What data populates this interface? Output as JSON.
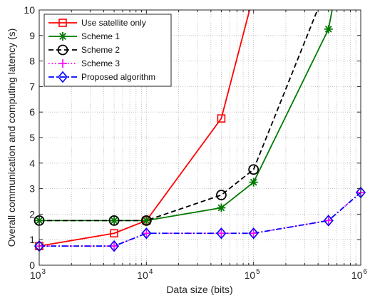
{
  "chart_data": {
    "type": "line",
    "xlabel": "Data size (bits)",
    "ylabel": "Overall communication and computing latency (s)",
    "xscale": "log",
    "xlim": [
      1000,
      1000000
    ],
    "ylim": [
      0,
      10
    ],
    "grid": true,
    "legend_position": "top-left",
    "x_ticks": [
      {
        "value": 1000,
        "base": "10",
        "exp": "3"
      },
      {
        "value": 10000,
        "base": "10",
        "exp": "4"
      },
      {
        "value": 100000,
        "base": "10",
        "exp": "5"
      },
      {
        "value": 1000000,
        "base": "10",
        "exp": "6"
      }
    ],
    "y_ticks": [
      "0",
      "1",
      "2",
      "3",
      "4",
      "5",
      "6",
      "7",
      "8",
      "9",
      "10"
    ],
    "series": [
      {
        "name": "Use satellite only",
        "color": "#ff0000",
        "dash": "solid",
        "marker": "square",
        "x": [
          1000,
          5000,
          10000,
          50000,
          100000
        ],
        "y": [
          0.75,
          1.25,
          1.75,
          5.75,
          10.6
        ],
        "marker_x": [
          1000,
          5000,
          10000,
          50000
        ]
      },
      {
        "name": "Scheme 1",
        "color": "#007a00",
        "dash": "solid",
        "marker": "asterisk",
        "x": [
          1000,
          5000,
          10000,
          50000,
          100000,
          500000,
          600000
        ],
        "y": [
          1.75,
          1.75,
          1.75,
          2.25,
          3.25,
          9.25,
          11.0
        ],
        "marker_x": [
          1000,
          5000,
          10000,
          50000,
          100000,
          500000
        ]
      },
      {
        "name": "Scheme 2",
        "color": "#000000",
        "dash": "dash",
        "marker": "circle",
        "x": [
          1000,
          5000,
          10000,
          50000,
          100000,
          450000
        ],
        "y": [
          1.75,
          1.75,
          1.75,
          2.75,
          3.75,
          10.6
        ],
        "marker_x": [
          1000,
          5000,
          10000,
          50000,
          100000
        ]
      },
      {
        "name": "Scheme 3",
        "color": "#ff00ff",
        "dash": "dot",
        "marker": "plus",
        "x": [
          1000,
          5000,
          10000,
          50000,
          100000,
          500000,
          1000000
        ],
        "y": [
          0.75,
          0.75,
          1.25,
          1.25,
          1.25,
          1.75,
          2.85
        ],
        "marker_x": [
          1000,
          5000,
          10000,
          50000,
          100000,
          500000,
          1000000
        ]
      },
      {
        "name": "Proposed algorithm",
        "color": "#0000ff",
        "dash": "dashdot",
        "marker": "diamond",
        "x": [
          1000,
          5000,
          10000,
          50000,
          100000,
          500000,
          1000000
        ],
        "y": [
          0.75,
          0.75,
          1.25,
          1.25,
          1.25,
          1.75,
          2.85
        ],
        "marker_x": [
          1000,
          5000,
          10000,
          50000,
          100000,
          500000,
          1000000
        ]
      }
    ]
  }
}
